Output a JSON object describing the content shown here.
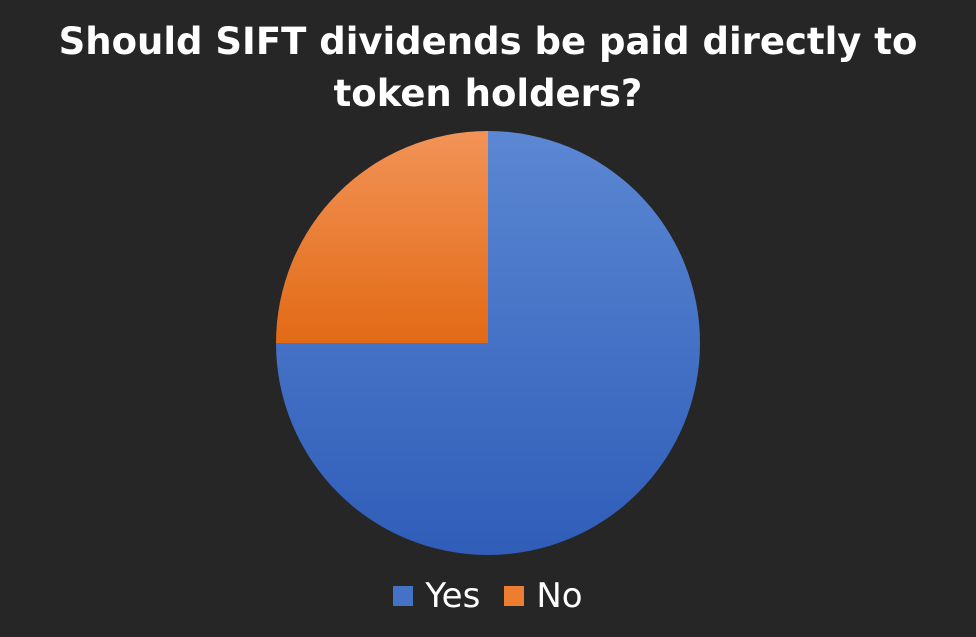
{
  "chart_data": {
    "type": "pie",
    "title": "Should SIFT dividends be paid directly to token holders?",
    "categories": [
      "Yes",
      "No"
    ],
    "values": [
      75,
      25
    ],
    "colors": [
      "#4472c4",
      "#ed7d31"
    ],
    "legend_position": "bottom"
  }
}
